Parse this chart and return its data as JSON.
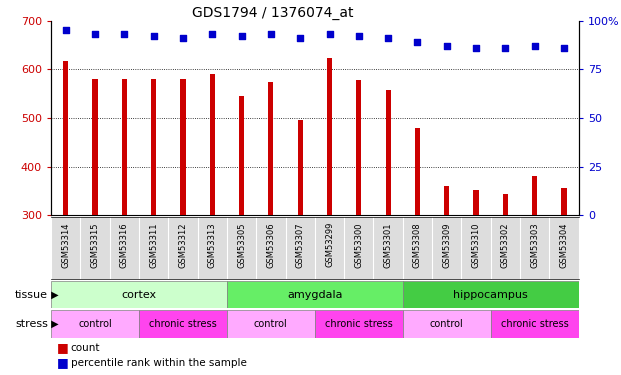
{
  "title": "GDS1794 / 1376074_at",
  "samples": [
    "GSM53314",
    "GSM53315",
    "GSM53316",
    "GSM53311",
    "GSM53312",
    "GSM53313",
    "GSM53305",
    "GSM53306",
    "GSM53307",
    "GSM53299",
    "GSM53300",
    "GSM53301",
    "GSM53308",
    "GSM53309",
    "GSM53310",
    "GSM53302",
    "GSM53303",
    "GSM53304"
  ],
  "counts": [
    617,
    581,
    581,
    581,
    581,
    591,
    546,
    573,
    496,
    623,
    578,
    557,
    479,
    360,
    352,
    343,
    381,
    355
  ],
  "percentiles": [
    95,
    93,
    93,
    92,
    91,
    93,
    92,
    93,
    91,
    93,
    92,
    91,
    89,
    87,
    86,
    86,
    87,
    86
  ],
  "ylim_left": [
    300,
    700
  ],
  "ylim_right": [
    0,
    100
  ],
  "yticks_left": [
    300,
    400,
    500,
    600,
    700
  ],
  "yticks_right": [
    0,
    25,
    50,
    75,
    100
  ],
  "bar_color": "#cc0000",
  "dot_color": "#0000cc",
  "tissue_groups": [
    {
      "label": "cortex",
      "start": 0,
      "end": 6,
      "color": "#ccffcc"
    },
    {
      "label": "amygdala",
      "start": 6,
      "end": 12,
      "color": "#66ee66"
    },
    {
      "label": "hippocampus",
      "start": 12,
      "end": 18,
      "color": "#44cc44"
    }
  ],
  "stress_groups": [
    {
      "label": "control",
      "start": 0,
      "end": 3,
      "color": "#ffaaff"
    },
    {
      "label": "chronic stress",
      "start": 3,
      "end": 6,
      "color": "#ff44ee"
    },
    {
      "label": "control",
      "start": 6,
      "end": 9,
      "color": "#ffaaff"
    },
    {
      "label": "chronic stress",
      "start": 9,
      "end": 12,
      "color": "#ff44ee"
    },
    {
      "label": "control",
      "start": 12,
      "end": 15,
      "color": "#ffaaff"
    },
    {
      "label": "chronic stress",
      "start": 15,
      "end": 18,
      "color": "#ff44ee"
    }
  ],
  "grid_lines": [
    400,
    500,
    600
  ],
  "background_color": "#ffffff",
  "tick_label_bg": "#dddddd",
  "axis_color_left": "#cc0000",
  "axis_color_right": "#0000cc",
  "bar_width": 0.18,
  "dot_size": 18
}
